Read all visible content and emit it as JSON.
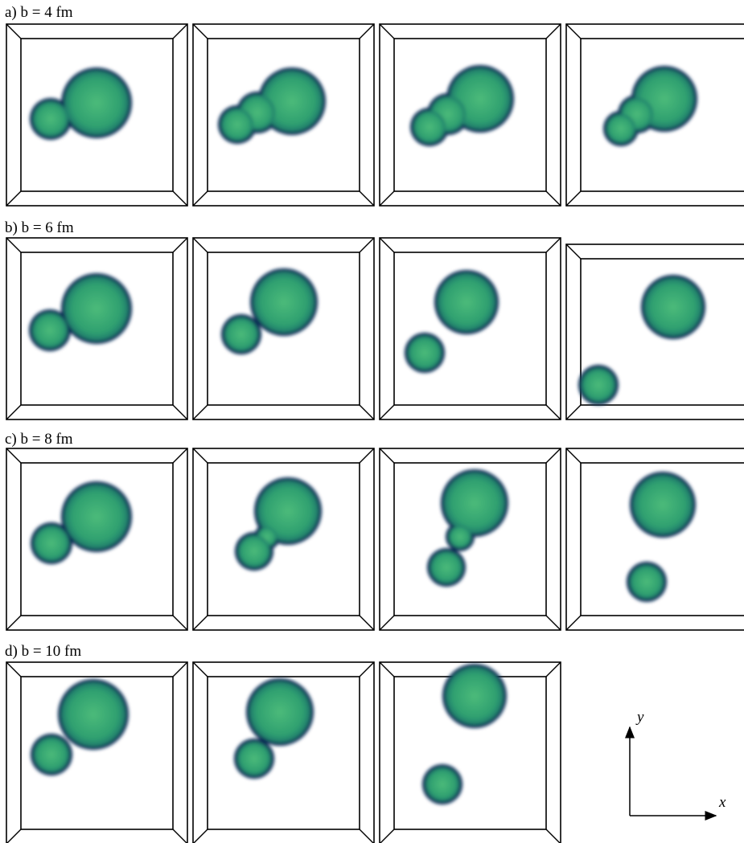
{
  "rows": [
    {
      "label": "a) b = 4 fm"
    },
    {
      "label": "b) b = 6 fm"
    },
    {
      "label": "c) b = 8 fm"
    },
    {
      "label": "d) b = 10 fm"
    }
  ],
  "axes": {
    "x": "x",
    "y": "y"
  }
}
